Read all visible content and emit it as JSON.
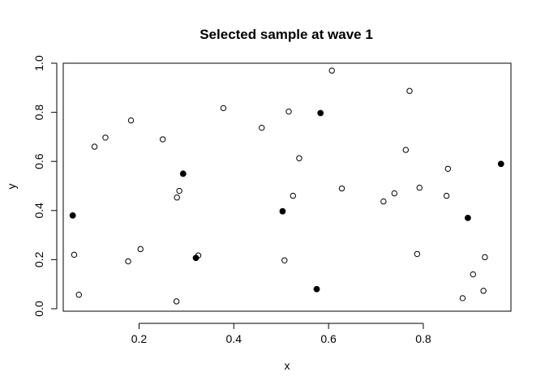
{
  "chart_data": {
    "type": "scatter",
    "title": "Selected sample at wave 1",
    "xlabel": "x",
    "ylabel": "y",
    "xlim": [
      0.04,
      0.985
    ],
    "ylim": [
      -0.01,
      1.0
    ],
    "grid": false,
    "x_ticks": [
      {
        "value": 0.2,
        "label": "0.2"
      },
      {
        "value": 0.4,
        "label": "0.4"
      },
      {
        "value": 0.6,
        "label": "0.6"
      },
      {
        "value": 0.8,
        "label": "0.8"
      }
    ],
    "y_ticks": [
      {
        "value": 0.0,
        "label": "0.0"
      },
      {
        "value": 0.2,
        "label": "0.2"
      },
      {
        "value": 0.4,
        "label": "0.4"
      },
      {
        "value": 0.6,
        "label": "0.6"
      },
      {
        "value": 0.8,
        "label": "0.8"
      },
      {
        "value": 1.0,
        "label": "1.0"
      }
    ],
    "series": [
      {
        "marker": "open-circle",
        "color": "#000000",
        "points": [
          {
            "x": 0.063,
            "y": 0.22
          },
          {
            "x": 0.073,
            "y": 0.057
          },
          {
            "x": 0.106,
            "y": 0.66
          },
          {
            "x": 0.129,
            "y": 0.697
          },
          {
            "x": 0.177,
            "y": 0.193
          },
          {
            "x": 0.183,
            "y": 0.767
          },
          {
            "x": 0.203,
            "y": 0.243
          },
          {
            "x": 0.25,
            "y": 0.69
          },
          {
            "x": 0.279,
            "y": 0.03
          },
          {
            "x": 0.28,
            "y": 0.453
          },
          {
            "x": 0.285,
            "y": 0.48
          },
          {
            "x": 0.325,
            "y": 0.217
          },
          {
            "x": 0.378,
            "y": 0.817
          },
          {
            "x": 0.459,
            "y": 0.737
          },
          {
            "x": 0.507,
            "y": 0.197
          },
          {
            "x": 0.516,
            "y": 0.803
          },
          {
            "x": 0.525,
            "y": 0.46
          },
          {
            "x": 0.538,
            "y": 0.613
          },
          {
            "x": 0.607,
            "y": 0.97
          },
          {
            "x": 0.628,
            "y": 0.49
          },
          {
            "x": 0.716,
            "y": 0.437
          },
          {
            "x": 0.739,
            "y": 0.47
          },
          {
            "x": 0.763,
            "y": 0.647
          },
          {
            "x": 0.771,
            "y": 0.887
          },
          {
            "x": 0.787,
            "y": 0.223
          },
          {
            "x": 0.792,
            "y": 0.493
          },
          {
            "x": 0.849,
            "y": 0.46
          },
          {
            "x": 0.852,
            "y": 0.57
          },
          {
            "x": 0.883,
            "y": 0.043
          },
          {
            "x": 0.905,
            "y": 0.14
          },
          {
            "x": 0.927,
            "y": 0.073
          },
          {
            "x": 0.93,
            "y": 0.21
          }
        ]
      },
      {
        "marker": "filled-circle",
        "color": "#000000",
        "points": [
          {
            "x": 0.06,
            "y": 0.38
          },
          {
            "x": 0.293,
            "y": 0.55
          },
          {
            "x": 0.32,
            "y": 0.207
          },
          {
            "x": 0.503,
            "y": 0.397
          },
          {
            "x": 0.575,
            "y": 0.08
          },
          {
            "x": 0.583,
            "y": 0.797
          },
          {
            "x": 0.894,
            "y": 0.37
          },
          {
            "x": 0.964,
            "y": 0.59
          }
        ]
      }
    ]
  }
}
